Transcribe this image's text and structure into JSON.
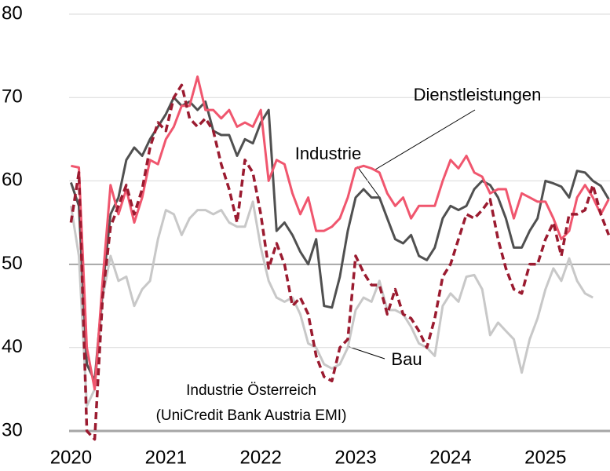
{
  "chart_data": {
    "type": "line",
    "x": [
      2020,
      2020.0833,
      2020.1667,
      2020.25,
      2020.3333,
      2020.4167,
      2020.5,
      2020.5833,
      2020.6667,
      2020.75,
      2020.8333,
      2020.9167,
      2021,
      2021.0833,
      2021.1667,
      2021.25,
      2021.3333,
      2021.4167,
      2021.5,
      2021.5833,
      2021.6667,
      2021.75,
      2021.8333,
      2021.9167,
      2022,
      2022.0833,
      2022.1667,
      2022.25,
      2022.3333,
      2022.4167,
      2022.5,
      2022.5833,
      2022.6667,
      2022.75,
      2022.8333,
      2022.9167,
      2023,
      2023.0833,
      2023.1667,
      2023.25,
      2023.3333,
      2023.4167,
      2023.5,
      2023.5833,
      2023.6667,
      2023.75,
      2023.8333,
      2023.9167,
      2024,
      2024.0833,
      2024.1667,
      2024.25,
      2024.3333,
      2024.4167,
      2024.5,
      2024.5833,
      2024.6667,
      2024.75,
      2024.8333,
      2024.9167,
      2025,
      2025.0833,
      2025.1667,
      2025.25,
      2025.3333,
      2025.4167,
      2025.5,
      2025.5833,
      2025.6667
    ],
    "series": [
      {
        "name": "Industrie Österreich",
        "color": "#c8c8c8",
        "dashed": false,
        "values": [
          57,
          51,
          33,
          35,
          46,
          51,
          48,
          48.5,
          45,
          47,
          48,
          53,
          56.5,
          56,
          53.5,
          55.5,
          56.5,
          56.5,
          56,
          56.5,
          55,
          54.5,
          54.5,
          57.5,
          52,
          48,
          46,
          45.5,
          46,
          44,
          40.5,
          40,
          38,
          37.5,
          38,
          40,
          44.5,
          46,
          45.5,
          48,
          44.5,
          44.5,
          44,
          42.5,
          40.5,
          40,
          39,
          45,
          46.5,
          45.5,
          48.5,
          48.7,
          47,
          41.5,
          43,
          42,
          41,
          37,
          41,
          43.5,
          47,
          49.5,
          48,
          50.7,
          48,
          46.5,
          46,
          null,
          null
        ]
      },
      {
        "name": "Industrie",
        "color": "#505050",
        "dashed": false,
        "values": [
          59.8,
          57,
          38,
          36,
          47,
          56,
          58,
          62.5,
          64,
          63,
          65,
          66.5,
          68,
          70,
          69,
          69.5,
          68.5,
          69.5,
          66,
          65.5,
          65.5,
          63,
          65,
          64.5,
          67,
          68.5,
          54,
          55,
          53.5,
          51.5,
          50,
          53,
          45,
          44.8,
          48.5,
          54,
          58,
          59,
          58,
          58,
          55.5,
          53,
          52.5,
          53.5,
          51,
          50.5,
          52,
          55.5,
          57,
          56.5,
          57,
          59,
          60,
          59.5,
          58,
          55.5,
          52,
          52,
          54,
          55.5,
          60,
          59.7,
          59.3,
          58,
          61.2,
          61,
          60,
          59.4,
          57.8
        ]
      },
      {
        "name": "Dienstleistungen",
        "color": "#f0566e",
        "dashed": false,
        "values": [
          61.8,
          61.6,
          40,
          35,
          48,
          59.5,
          56,
          59,
          55,
          58,
          62.5,
          62,
          65,
          66.5,
          69,
          69,
          72.5,
          68.5,
          68.5,
          67.5,
          68.5,
          66.5,
          67,
          66.5,
          68.5,
          60,
          62.5,
          62,
          58.5,
          56,
          58,
          54,
          54,
          54.5,
          55.5,
          58,
          61.5,
          61.8,
          61.5,
          61,
          58.5,
          57,
          58,
          55.5,
          57,
          57,
          57,
          60,
          62.5,
          61.5,
          63,
          61,
          60.5,
          58.5,
          59,
          59,
          55.5,
          58.5,
          58,
          57.5,
          57.5,
          55.5,
          53,
          54,
          58,
          59.5,
          58,
          56,
          57.8
        ]
      },
      {
        "name": "Bau",
        "color": "#9b1b30",
        "dashed": true,
        "values": [
          55,
          61,
          30,
          29,
          46,
          54.5,
          57,
          59.5,
          56,
          59,
          64,
          67,
          66,
          70,
          71.5,
          67.5,
          66.5,
          67.5,
          66,
          62,
          59,
          55,
          62.5,
          61,
          56,
          49.5,
          52.5,
          50,
          45,
          46,
          44,
          39,
          36.5,
          36,
          40,
          41,
          51,
          49,
          47.5,
          47.5,
          44,
          47,
          44,
          43.5,
          42,
          40,
          43.5,
          48.5,
          50,
          53,
          56,
          55.5,
          56.5,
          57.8,
          53,
          49.5,
          47,
          46.5,
          50,
          50,
          53,
          55,
          51,
          56,
          56,
          56.5,
          59.5,
          56,
          53.5
        ]
      }
    ],
    "annotations": [
      "Dienstleistungen",
      "Industrie",
      "Bau",
      "Industrie Österreich",
      "(UniCredit Bank Austria EMI)"
    ],
    "xlim": [
      2019.98,
      2025.68
    ],
    "xticks": [
      2020,
      2021,
      2022,
      2023,
      2024,
      2025
    ],
    "ylim": [
      30,
      80
    ],
    "yticks": [
      30,
      40,
      50,
      60,
      70,
      80
    ],
    "grid": true,
    "reference_line": 50
  }
}
